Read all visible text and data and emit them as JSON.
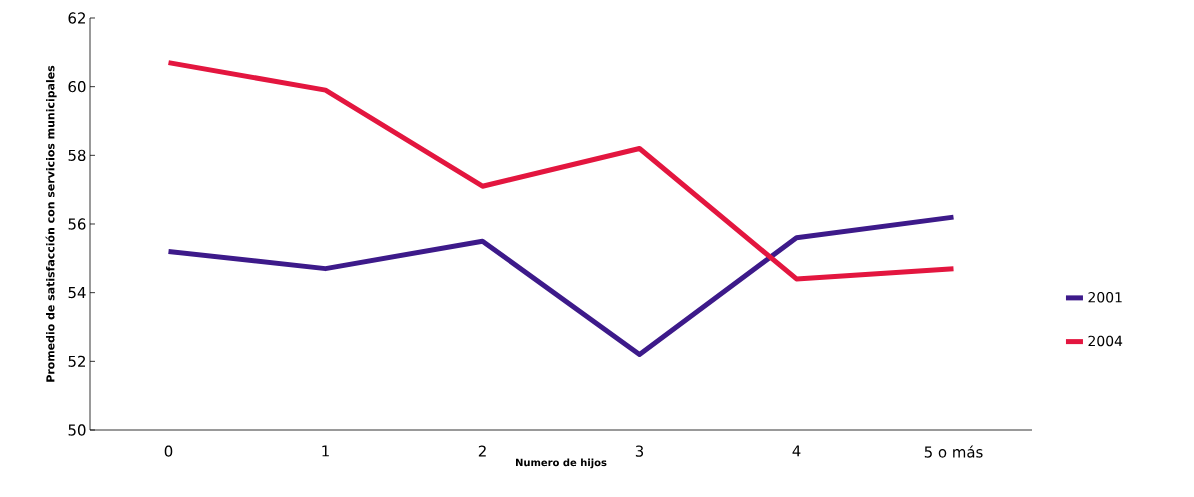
{
  "chart_data": {
    "type": "line",
    "xlabel": "Numero de hijos",
    "ylabel": "Promedio de satisfacción con servicios municipales",
    "categories": [
      "0",
      "1",
      "2",
      "3",
      "4",
      "5 o más"
    ],
    "series": [
      {
        "name": "2001",
        "color": "#3d1a8a",
        "values": [
          55.2,
          54.7,
          55.5,
          52.2,
          55.6,
          56.2
        ]
      },
      {
        "name": "2004",
        "color": "#e3163f",
        "values": [
          60.7,
          59.9,
          57.1,
          58.2,
          54.4,
          54.7
        ]
      }
    ],
    "ylim": [
      50,
      62
    ],
    "yticks": [
      50,
      52,
      54,
      56,
      58,
      60,
      62
    ],
    "legend": "right",
    "grid": false,
    "marker": "none",
    "line_style": "solid"
  }
}
